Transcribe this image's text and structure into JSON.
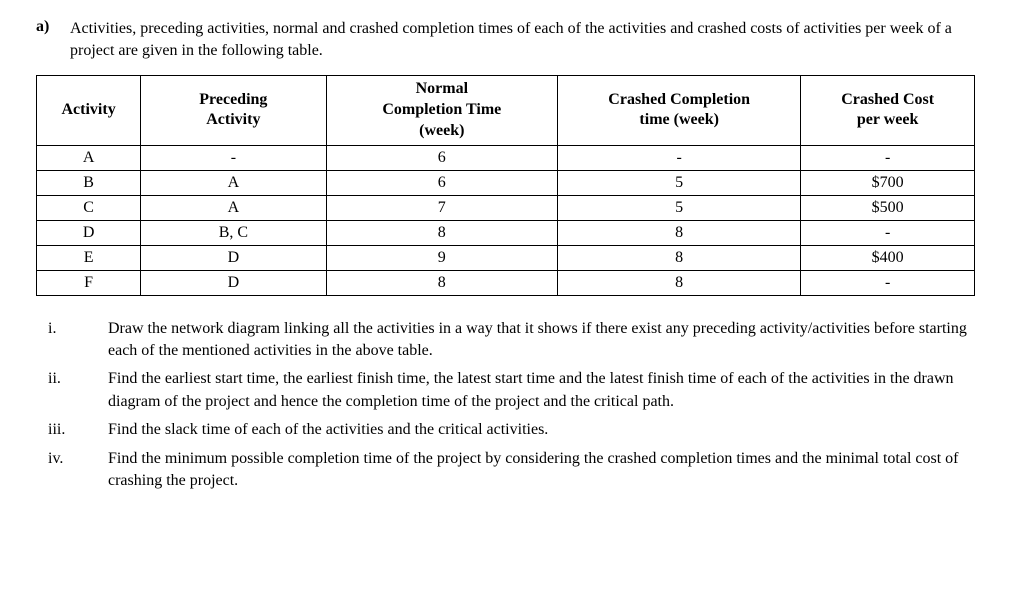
{
  "question": {
    "label": "a)",
    "intro": "Activities, preceding activities, normal and crashed completion times of each of the activities and crashed costs of activities per week of a project are given in the following table."
  },
  "table": {
    "columns": [
      "Activity",
      "Preceding Activity",
      "Normal Completion Time (week)",
      "Crashed Completion time (week)",
      "Crashed Cost per week"
    ],
    "header_lines": {
      "activity": "Activity",
      "preceding_l1": "Preceding",
      "preceding_l2": "Activity",
      "normal_l1": "Normal",
      "normal_l2": "Completion Time",
      "normal_l3": "(week)",
      "crashed_time_l1": "Crashed Completion",
      "crashed_time_l2": "time (week)",
      "crashed_cost_l1": "Crashed Cost",
      "crashed_cost_l2": "per week"
    },
    "rows": [
      {
        "activity": "A",
        "preceding": "-",
        "normal": "6",
        "crashed_time": "-",
        "crashed_cost": "-"
      },
      {
        "activity": "B",
        "preceding": "A",
        "normal": "6",
        "crashed_time": "5",
        "crashed_cost": "$700"
      },
      {
        "activity": "C",
        "preceding": "A",
        "normal": "7",
        "crashed_time": "5",
        "crashed_cost": "$500"
      },
      {
        "activity": "D",
        "preceding": "B, C",
        "normal": "8",
        "crashed_time": "8",
        "crashed_cost": "-"
      },
      {
        "activity": "E",
        "preceding": "D",
        "normal": "9",
        "crashed_time": "8",
        "crashed_cost": "$400"
      },
      {
        "activity": "F",
        "preceding": "D",
        "normal": "8",
        "crashed_time": "8",
        "crashed_cost": "-"
      }
    ],
    "border_color": "#000000",
    "background_color": "#ffffff",
    "header_font_weight": "bold",
    "cell_align": "center",
    "font_family": "Times New Roman",
    "font_size_pt": 12
  },
  "subparts": [
    {
      "label": "i.",
      "text": "Draw the network diagram linking all the activities in a way that it shows if there exist any preceding activity/activities before starting each of the mentioned activities in the above table."
    },
    {
      "label": "ii.",
      "text": "Find the earliest start time, the earliest finish time, the latest start time and the latest finish time of each of the activities in the drawn diagram of the project and hence the completion time of the project and the critical path."
    },
    {
      "label": "iii.",
      "text": "Find the slack time of each of the activities and the critical activities."
    },
    {
      "label": "iv.",
      "text": "Find the minimum possible completion time of the project by considering the crashed completion times and the minimal total cost of crashing the project."
    }
  ]
}
